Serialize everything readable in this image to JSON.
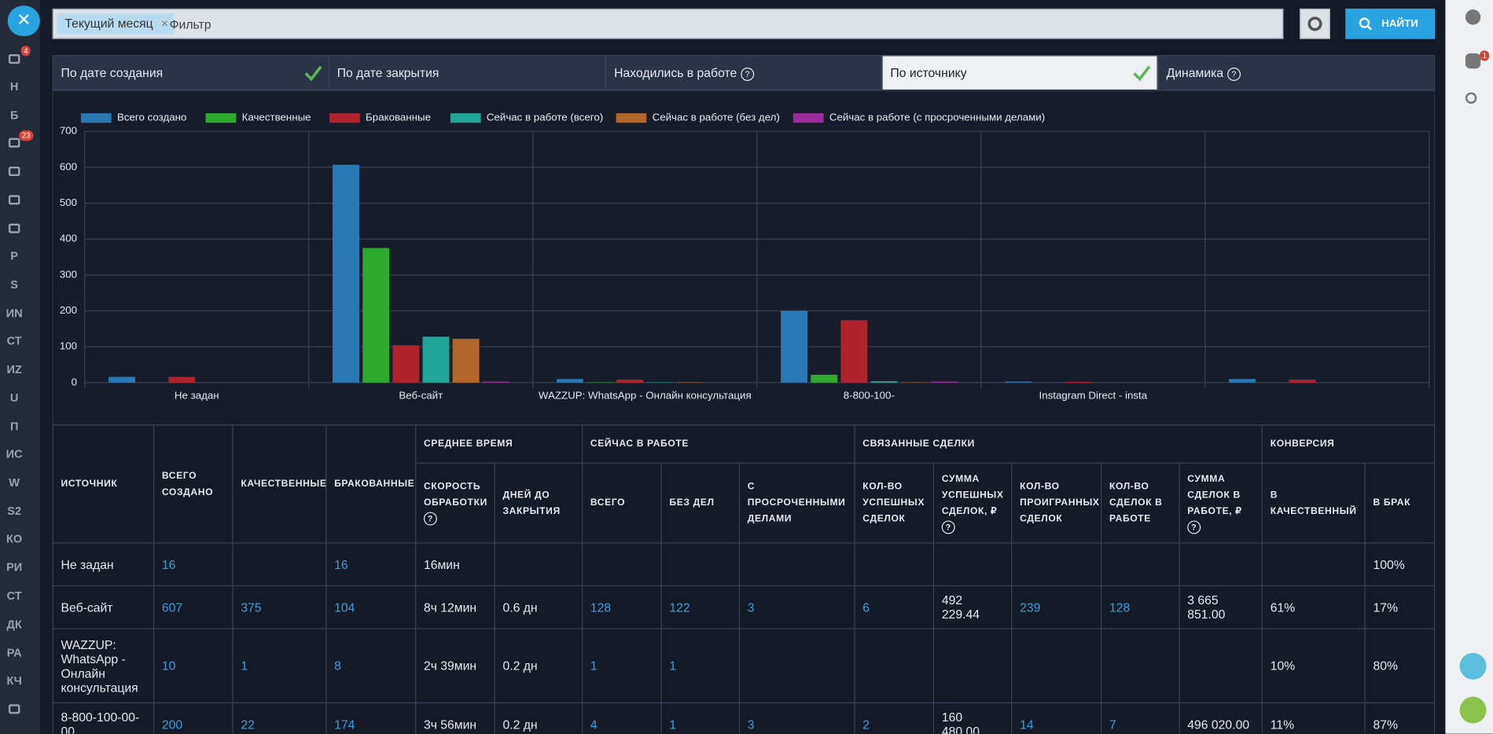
{
  "filter": {
    "chip": "Текущий месяц",
    "placeholder": "Фильтр",
    "button": "НАЙТИ"
  },
  "sidebar": {
    "items": [
      "Н",
      "Б",
      "Р",
      "S",
      "ИN",
      "СТ",
      "ИZ",
      "U",
      "П",
      "ИС",
      "W",
      "S2",
      "КО",
      "РИ",
      "СТ",
      "ДК",
      "РА",
      "КЧ"
    ],
    "badges": [
      "4",
      "23"
    ]
  },
  "right_panel": {
    "badge": "1"
  },
  "tabs": [
    "По дате создания",
    "По дате закрытия",
    "Находились в работе",
    "По источнику",
    "Динамика"
  ],
  "chart_data": {
    "type": "bar",
    "categories": [
      "Не задан",
      "Веб-сайт",
      "WAZZUP: WhatsApp - Онлайн консультация",
      "8-800-100-",
      "Instagram Direct - insta",
      null
    ],
    "series": [
      {
        "name": "Всего создано",
        "color": "#2a78b4",
        "values": [
          16,
          607,
          10,
          200,
          3,
          10
        ]
      },
      {
        "name": "Качественные",
        "color": "#2eab2e",
        "values": [
          0,
          375,
          1,
          22,
          0,
          0
        ]
      },
      {
        "name": "Бракованные",
        "color": "#b0222c",
        "values": [
          16,
          104,
          8,
          174,
          2,
          8
        ]
      },
      {
        "name": "Сейчас в работе (всего)",
        "color": "#21a596",
        "values": [
          0,
          128,
          1,
          4,
          0,
          0
        ]
      },
      {
        "name": "Сейчас в работе (без дел)",
        "color": "#b3662a",
        "values": [
          0,
          122,
          1,
          1,
          0,
          0
        ]
      },
      {
        "name": "Сейчас в работе (с просроченными делами)",
        "color": "#9b2a9b",
        "values": [
          0,
          3,
          0,
          3,
          0,
          0
        ]
      }
    ],
    "ylim": [
      0,
      700
    ],
    "yticks": [
      0,
      100,
      200,
      300,
      400,
      500,
      600,
      700
    ],
    "grid": true
  },
  "table": {
    "columns": [
      "ИСТОЧНИК",
      "ВСЕГО СОЗДАНО",
      "КАЧЕСТВЕННЫЕ",
      "БРАКОВАННЫЕ"
    ],
    "groups": [
      {
        "title": "СРЕДНЕЕ ВРЕМЯ",
        "columns": [
          "СКОРОСТЬ ОБРАБОТКИ",
          "ДНЕЙ ДО ЗАКРЫТИЯ"
        ]
      },
      {
        "title": "СЕЙЧАС В РАБОТЕ",
        "columns": [
          "ВСЕГО",
          "БЕЗ ДЕЛ",
          "С ПРОСРОЧЕННЫМИ ДЕЛАМИ"
        ]
      },
      {
        "title": "СВЯЗАННЫЕ СДЕЛКИ",
        "columns": [
          "КОЛ-ВО УСПЕШНЫХ СДЕЛОК",
          "СУММА УСПЕШНЫХ СДЕЛОК, ₽",
          "КОЛ-ВО ПРОИГРАННЫХ СДЕЛОК",
          "КОЛ-ВО СДЕЛОК В РАБОТЕ",
          "СУММА СДЕЛОК В РАБОТЕ, ₽"
        ]
      },
      {
        "title": "КОНВЕРСИЯ",
        "columns": [
          "В КАЧЕСТВЕННЫЙ",
          "В БРАК"
        ]
      }
    ],
    "rows": [
      [
        "Не задан",
        "16",
        null,
        "16",
        "16мин",
        null,
        null,
        null,
        null,
        null,
        null,
        null,
        null,
        null,
        null,
        "100%"
      ],
      [
        "Веб-сайт",
        "607",
        "375",
        "104",
        "8ч 12мин",
        "0.6 дн",
        "128",
        "122",
        "3",
        "6",
        "492 229.44",
        "239",
        "128",
        "3 665 851.00",
        "61%",
        "17%"
      ],
      [
        "WAZZUP: WhatsApp - Онлайн консультация",
        "10",
        "1",
        "8",
        "2ч 39мин",
        "0.2 дн",
        "1",
        "1",
        null,
        null,
        null,
        null,
        null,
        null,
        "10%",
        "80%"
      ],
      [
        "8-800-100-00-00",
        "200",
        "22",
        "174",
        "3ч 56мин",
        "0.2 дн",
        "4",
        "1",
        "3",
        "2",
        "160 480.00",
        "14",
        "7",
        "496 020.00",
        "11%",
        "87%"
      ]
    ]
  }
}
